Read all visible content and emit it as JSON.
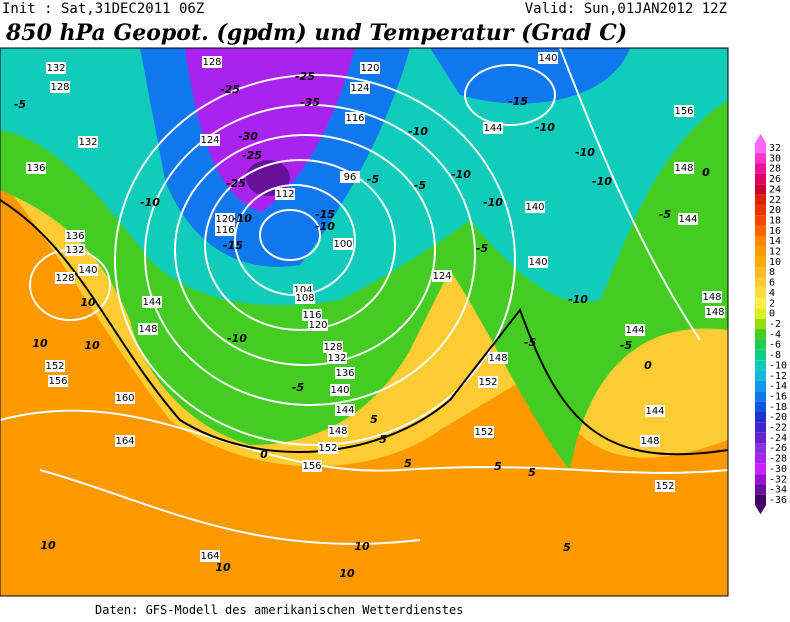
{
  "header": {
    "init": "Init : Sat,31DEC2011 06Z",
    "valid": "Valid: Sun,01JAN2012 12Z",
    "title": "850 hPa Geopot. (gpdm) und Temperatur (Grad C)"
  },
  "colorbar": {
    "ticks": [
      32,
      30,
      28,
      26,
      24,
      22,
      20,
      18,
      16,
      14,
      12,
      10,
      8,
      6,
      4,
      2,
      0,
      -2,
      -4,
      -6,
      -8,
      -10,
      -12,
      -14,
      -16,
      -18,
      -20,
      -22,
      -24,
      -26,
      -28,
      -30,
      -32,
      -34,
      -36
    ],
    "colors": [
      "#ff66ff",
      "#ff33cc",
      "#ee1199",
      "#dd0066",
      "#cc0033",
      "#dd2200",
      "#ee3300",
      "#ff4400",
      "#ff6600",
      "#ff8800",
      "#ff9900",
      "#ffaa00",
      "#ffbb22",
      "#ffcc33",
      "#ffdd44",
      "#ffee44",
      "#ddee22",
      "#99dd00",
      "#44cc22",
      "#22cc55",
      "#11cc88",
      "#11ccbb",
      "#11bbdd",
      "#1199ee",
      "#1177ee",
      "#1155dd",
      "#2233cc",
      "#4422cc",
      "#6622cc",
      "#8833dd",
      "#aa22ee",
      "#cc22ff",
      "#9911cc",
      "#661199",
      "#440066"
    ]
  },
  "map_labels": [
    132,
    128,
    132,
    136,
    136,
    132,
    128,
    140,
    144,
    148,
    152,
    156,
    160,
    164,
    164,
    128,
    124,
    120,
    116,
    112,
    104,
    108,
    116,
    120,
    128,
    132,
    136,
    140,
    144,
    148,
    152,
    156,
    100,
    96,
    124,
    120,
    116,
    144,
    140,
    140,
    124,
    148,
    152,
    152,
    144,
    144,
    148,
    152,
    148,
    148,
    156,
    148,
    144,
    140,
    -5,
    -10,
    -15,
    -25,
    -25,
    -35,
    -30,
    -25,
    -25,
    -10,
    -15,
    -10,
    -5,
    -10,
    -10,
    -5,
    -10,
    -5,
    -15,
    -10,
    -10,
    -10,
    -5,
    0,
    -10,
    -5,
    -5,
    0,
    -10,
    -5,
    10,
    10,
    10,
    0,
    5,
    5,
    5,
    5,
    5,
    5,
    10,
    10,
    10,
    10
  ],
  "footer": "Daten: GFS-Modell des amerikanischen Wetterdienstes"
}
